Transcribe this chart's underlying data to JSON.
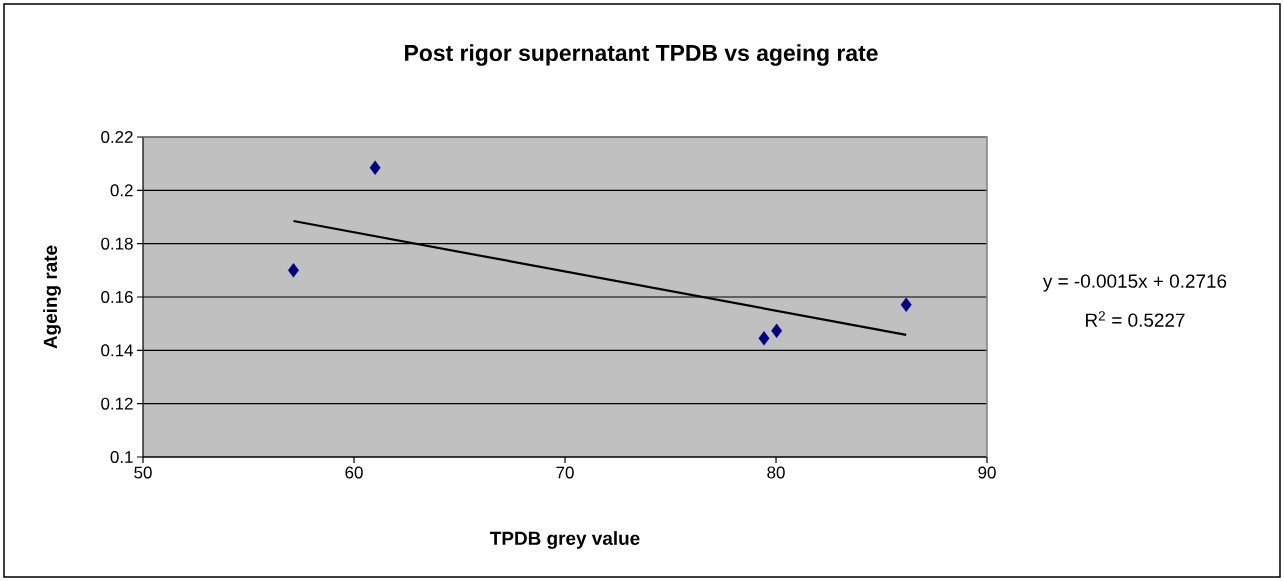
{
  "chart_data": {
    "type": "scatter",
    "title": "Post rigor supernatant TPDB vs ageing rate",
    "xlabel": "TPDB grey value",
    "ylabel": "Ageing rate",
    "series": [
      {
        "color": "#000080",
        "marker": "diamond",
        "x": [
          57.13,
          61.0,
          79.43,
          80.03,
          86.17
        ],
        "values": [
          0.17,
          0.2085,
          0.1445,
          0.1473,
          0.1571
        ]
      },
      {
        "type": "line",
        "color": "#000000",
        "marker": "none",
        "line_style": "solid",
        "x": [
          57.13,
          86.17
        ],
        "values": [
          0.1885,
          0.1458
        ]
      }
    ],
    "annotations": [
      "y = -0.0015x + 0.2716",
      "R$^{2}$ = 0.5227"
    ],
    "xlim": [
      50,
      90
    ],
    "ylim": [
      0.1,
      0.22
    ],
    "xticks": [
      50,
      60,
      70,
      80,
      90
    ],
    "yticks": [
      0.1,
      0.12,
      0.14,
      0.16,
      0.18,
      0.2,
      0.22
    ],
    "grid": "y"
  }
}
